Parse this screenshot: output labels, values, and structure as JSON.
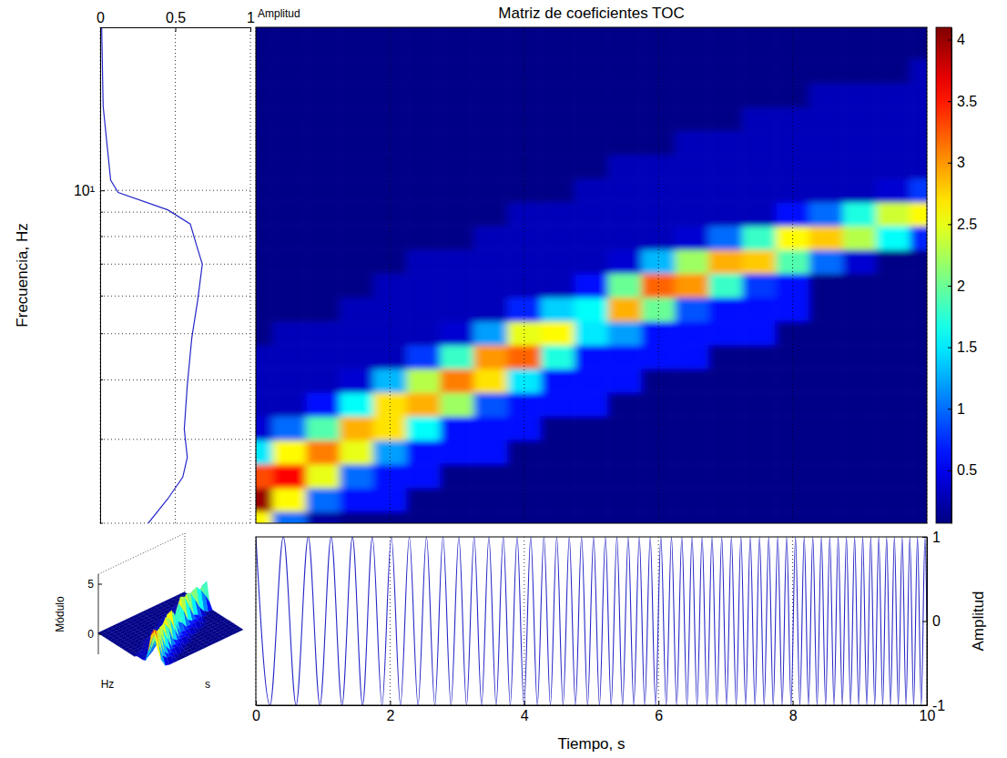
{
  "chart_data": {
    "type": "heatmap",
    "title": "Matriz de coeficientes TOC",
    "x_label": "Tiempo, s",
    "y_label": "Frecuencia, Hz",
    "log": "y",
    "grid": true,
    "xlim": [
      0,
      10
    ],
    "xticks": [
      0,
      2,
      4,
      6,
      8,
      10
    ],
    "ylim": [
      2,
      22
    ],
    "yticks": [
      {
        "value": 10,
        "label": "10¹"
      }
    ],
    "yminor": [
      2,
      3,
      4,
      5,
      6,
      7,
      8,
      9
    ],
    "x": [
      0,
      0.5,
      1,
      1.5,
      2,
      2.5,
      3,
      3.5,
      4,
      4.5,
      5,
      5.5,
      6,
      6.5,
      7,
      7.5,
      8,
      8.5,
      9,
      9.5,
      10
    ],
    "y": [
      2.0,
      2.24,
      2.51,
      2.82,
      3.16,
      3.55,
      3.98,
      4.47,
      5.01,
      5.62,
      6.31,
      7.08,
      7.94,
      8.91,
      10,
      11.2,
      12.6,
      14.1,
      15.8,
      17.8,
      20.0,
      22.4
    ],
    "z": [
      [
        2.6,
        4.0,
        3.3,
        1.5,
        0.4,
        0.3,
        0.3,
        0.3,
        0.1,
        0.1,
        0.1,
        0.1,
        0.1,
        0.1,
        0.1,
        0.1,
        0.1,
        0.1,
        0.1,
        0.1,
        0.1,
        0.1
      ],
      [
        1.0,
        2.6,
        3.6,
        2.6,
        1.0,
        0.3,
        0.3,
        0.3,
        0.3,
        0.1,
        0.1,
        0.1,
        0.1,
        0.1,
        0.1,
        0.1,
        0.1,
        0.1,
        0.1,
        0.1,
        0.1,
        0.1
      ],
      [
        0.2,
        1.0,
        2.5,
        3.1,
        1.9,
        0.6,
        0.3,
        0.3,
        0.3,
        0.1,
        0.1,
        0.1,
        0.1,
        0.1,
        0.1,
        0.1,
        0.1,
        0.1,
        0.1,
        0.1,
        0.1,
        0.1
      ],
      [
        0.1,
        0.6,
        1.0,
        2.5,
        2.9,
        1.6,
        0.4,
        0.3,
        0.3,
        0.3,
        0.1,
        0.1,
        0.1,
        0.1,
        0.1,
        0.1,
        0.1,
        0.1,
        0.1,
        0.1,
        0.1,
        0.1
      ],
      [
        0.1,
        0.6,
        0.6,
        1.2,
        2.7,
        2.7,
        1.3,
        0.3,
        0.3,
        0.3,
        0.3,
        0.1,
        0.1,
        0.1,
        0.1,
        0.1,
        0.1,
        0.1,
        0.1,
        0.1,
        0.1,
        0.1
      ],
      [
        0.1,
        0.1,
        0.6,
        0.6,
        1.6,
        2.9,
        2.3,
        0.8,
        0.3,
        0.3,
        0.3,
        0.3,
        0.1,
        0.1,
        0.1,
        0.1,
        0.1,
        0.1,
        0.1,
        0.1,
        0.1,
        0.1
      ],
      [
        0.1,
        0.1,
        0.1,
        0.6,
        0.6,
        2.2,
        3.1,
        1.8,
        0.4,
        0.3,
        0.3,
        0.3,
        0.1,
        0.1,
        0.1,
        0.1,
        0.1,
        0.1,
        0.1,
        0.1,
        0.1,
        0.1
      ],
      [
        0.1,
        0.1,
        0.1,
        0.6,
        0.6,
        0.9,
        2.7,
        3.0,
        1.2,
        0.3,
        0.3,
        0.3,
        0.3,
        0.1,
        0.1,
        0.1,
        0.1,
        0.1,
        0.1,
        0.1,
        0.1,
        0.1
      ],
      [
        0.1,
        0.1,
        0.1,
        0.1,
        0.6,
        0.6,
        1.5,
        3.2,
        2.5,
        0.7,
        0.3,
        0.3,
        0.3,
        0.3,
        0.1,
        0.1,
        0.1,
        0.1,
        0.1,
        0.1,
        0.1,
        0.1
      ],
      [
        0.1,
        0.1,
        0.1,
        0.1,
        0.1,
        0.6,
        0.6,
        1.7,
        2.6,
        1.4,
        0.3,
        0.3,
        0.3,
        0.3,
        0.1,
        0.1,
        0.1,
        0.1,
        0.1,
        0.1,
        0.1,
        0.1
      ],
      [
        0.1,
        0.1,
        0.1,
        0.1,
        0.1,
        0.6,
        0.6,
        0.6,
        1.5,
        1.6,
        0.6,
        0.3,
        0.3,
        0.3,
        0.3,
        0.1,
        0.1,
        0.1,
        0.1,
        0.1,
        0.1,
        0.1
      ],
      [
        0.1,
        0.1,
        0.1,
        0.1,
        0.1,
        0.1,
        0.6,
        0.6,
        1.2,
        2.9,
        2.0,
        0.4,
        0.3,
        0.3,
        0.3,
        0.3,
        0.1,
        0.1,
        0.1,
        0.1,
        0.1,
        0.1
      ],
      [
        0.1,
        0.1,
        0.1,
        0.1,
        0.1,
        0.1,
        0.1,
        0.6,
        0.6,
        2.0,
        3.2,
        1.3,
        0.3,
        0.3,
        0.3,
        0.3,
        0.1,
        0.1,
        0.1,
        0.1,
        0.1,
        0.1
      ],
      [
        0.1,
        0.1,
        0.1,
        0.1,
        0.1,
        0.1,
        0.1,
        0.6,
        0.6,
        0.9,
        3.0,
        2.2,
        0.4,
        0.3,
        0.3,
        0.3,
        0.3,
        0.1,
        0.1,
        0.1,
        0.1,
        0.1
      ],
      [
        0.1,
        0.1,
        0.1,
        0.1,
        0.1,
        0.1,
        0.1,
        0.1,
        0.6,
        0.6,
        1.8,
        2.9,
        1.0,
        0.3,
        0.3,
        0.3,
        0.3,
        0.1,
        0.1,
        0.1,
        0.1,
        0.1
      ],
      [
        0.1,
        0.1,
        0.1,
        0.1,
        0.1,
        0.1,
        0.1,
        0.1,
        0.6,
        0.6,
        0.8,
        2.8,
        1.8,
        0.3,
        0.3,
        0.3,
        0.3,
        0.3,
        0.1,
        0.1,
        0.1,
        0.1
      ],
      [
        0.1,
        0.1,
        0.1,
        0.1,
        0.1,
        0.1,
        0.1,
        0.1,
        0.1,
        0.6,
        0.6,
        1.9,
        2.6,
        0.6,
        0.3,
        0.3,
        0.3,
        0.3,
        0.1,
        0.1,
        0.1,
        0.1
      ],
      [
        0.1,
        0.1,
        0.1,
        0.1,
        0.1,
        0.1,
        0.1,
        0.1,
        0.1,
        0.1,
        0.1,
        1.0,
        2.8,
        1.0,
        0.3,
        0.3,
        0.3,
        0.3,
        0.3,
        0.1,
        0.1,
        0.1
      ],
      [
        0.1,
        0.1,
        0.1,
        0.1,
        0.1,
        0.1,
        0.1,
        0.1,
        0.1,
        0.1,
        0.1,
        0.4,
        2.3,
        1.7,
        0.3,
        0.3,
        0.3,
        0.3,
        0.3,
        0.1,
        0.1,
        0.1
      ],
      [
        0.1,
        0.1,
        0.1,
        0.1,
        0.1,
        0.1,
        0.1,
        0.1,
        0.1,
        0.1,
        0.1,
        0.1,
        1.6,
        2.4,
        0.4,
        0.3,
        0.3,
        0.3,
        0.3,
        0.1,
        0.1,
        0.1
      ],
      [
        0.1,
        0.1,
        0.1,
        0.1,
        0.1,
        0.1,
        0.1,
        0.1,
        0.1,
        0.1,
        0.1,
        0.1,
        0.7,
        2.6,
        0.8,
        0.3,
        0.3,
        0.3,
        0.3,
        0.3,
        0.1,
        0.1
      ]
    ],
    "colorbar": {
      "lim": [
        0.07,
        4.1
      ],
      "ticks": [
        0.5,
        1,
        1.5,
        2,
        2.5,
        3,
        3.5,
        4
      ]
    },
    "spectrum": {
      "label": "Amplitud",
      "color": "#2626c8",
      "xlim": [
        0,
        1
      ],
      "xticks": [
        0,
        0.5,
        1
      ],
      "freq": [
        2.0,
        2.25,
        2.5,
        2.75,
        3.15,
        3.9,
        4.9,
        5.9,
        7.0,
        7.7,
        8.5,
        9.1,
        9.9,
        10.5,
        15,
        22
      ],
      "values": [
        0.32,
        0.45,
        0.55,
        0.58,
        0.56,
        0.58,
        0.61,
        0.65,
        0.68,
        0.64,
        0.6,
        0.45,
        0.12,
        0.07,
        0.02,
        0.01
      ]
    },
    "signal": {
      "y_label": "Amplitud",
      "color": "#2626c8",
      "ylim": [
        -1,
        1
      ],
      "yticks": [
        -1,
        0,
        1
      ],
      "x": [
        0,
        0.211,
        0.41,
        0.6,
        0.781,
        0.955,
        1.122,
        1.284,
        1.44,
        1.591,
        1.737,
        1.88,
        2.019,
        2.155,
        2.287,
        2.417,
        2.543,
        2.667,
        2.789,
        2.908,
        3.025,
        3.14,
        3.253,
        3.364,
        3.473,
        3.581,
        3.687,
        3.791,
        3.894,
        3.996,
        4.096,
        4.195,
        4.293,
        4.389,
        4.484,
        4.578,
        4.671,
        4.763,
        4.854,
        4.944,
        5.033,
        5.121,
        5.209,
        5.295,
        5.38,
        5.465,
        5.549,
        5.632,
        5.714,
        5.796,
        5.877,
        5.957,
        6.036,
        6.115,
        6.194,
        6.271,
        6.348,
        6.425,
        6.5,
        6.575,
        6.65,
        6.724,
        6.798,
        6.871,
        6.943,
        7.015,
        7.087,
        7.158,
        7.229,
        7.299,
        7.368,
        7.438,
        7.506,
        7.575,
        7.643,
        7.71,
        7.777,
        7.844,
        7.91,
        7.976,
        8.042,
        8.107,
        8.172,
        8.236,
        8.3,
        8.364,
        8.428,
        8.491,
        8.553,
        8.616,
        8.678,
        8.74,
        8.801,
        8.863,
        8.923,
        8.984,
        9.044,
        9.104,
        9.164,
        9.223,
        9.283,
        9.342,
        9.4,
        9.458,
        9.516,
        9.574,
        9.632,
        9.689,
        9.746,
        9.803,
        9.86,
        9.916,
        9.972,
        10
      ],
      "values": [
        1,
        -1,
        1,
        -1,
        1,
        -1,
        1,
        -1,
        1,
        -1,
        1,
        -1,
        1,
        -1,
        1,
        -1,
        1,
        -1,
        1,
        -1,
        1,
        -1,
        1,
        -1,
        1,
        -1,
        1,
        -1,
        1,
        -1,
        1,
        -1,
        1,
        -1,
        1,
        -1,
        1,
        -1,
        1,
        -1,
        1,
        -1,
        1,
        -1,
        1,
        -1,
        1,
        -1,
        1,
        -1,
        1,
        -1,
        1,
        -1,
        1,
        -1,
        1,
        -1,
        1,
        -1,
        1,
        -1,
        1,
        -1,
        1,
        -1,
        1,
        -1,
        1,
        -1,
        1,
        -1,
        1,
        -1,
        1,
        -1,
        1,
        -1,
        1,
        -1,
        1,
        -1,
        1,
        -1,
        1,
        -1,
        1,
        -1,
        1,
        -1,
        1,
        -1,
        1,
        -1,
        1,
        -1,
        1,
        -1,
        1,
        -1,
        1,
        -1,
        1,
        -1,
        1,
        -1,
        1,
        -1,
        1,
        -1,
        1,
        -1,
        1,
        0
      ]
    },
    "surface": {
      "z_label": "Módulo",
      "zlim": [
        -2,
        6
      ],
      "zticks": [
        0,
        5
      ],
      "x_label": "s",
      "y_label": "Hz"
    }
  }
}
